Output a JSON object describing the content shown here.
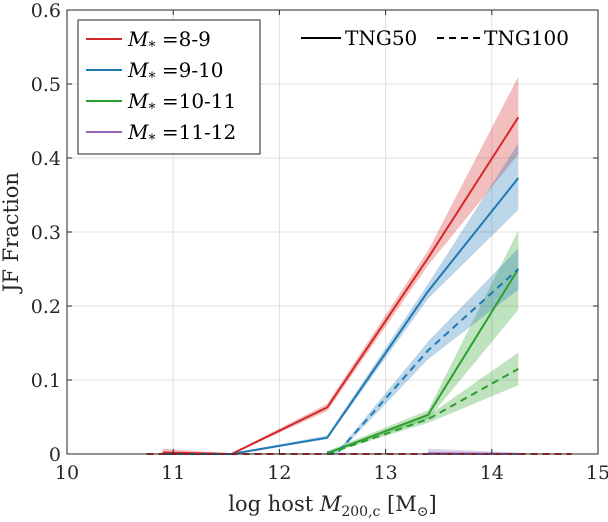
{
  "chart_data": {
    "type": "line",
    "xlabel": "log host M200,c [M⊙]",
    "xlabel_parts": {
      "prefix": "log host ",
      "var": "M",
      "sub": "200,c",
      "unit": " [M",
      "unit_sub": "⊙",
      "suffix": "]"
    },
    "ylabel": "JF Fraction",
    "xlim": [
      10,
      15
    ],
    "ylim": [
      0,
      0.6
    ],
    "xticks": [
      "10",
      "11",
      "12",
      "13",
      "14",
      "15"
    ],
    "yticks": [
      "0",
      "0.1",
      "0.2",
      "0.3",
      "0.4",
      "0.5",
      "0.6"
    ],
    "grid": true,
    "colors": {
      "red": "#d62728",
      "blue": "#1f77b4",
      "green": "#2ca02c",
      "purple": "#9467bd"
    },
    "legend_mass": {
      "placement": "top-left",
      "entries": [
        {
          "var": "M",
          "sub": "*",
          "text": " =8-9",
          "color": "#d62728"
        },
        {
          "var": "M",
          "sub": "*",
          "text": " =9-10",
          "color": "#1f77b4"
        },
        {
          "var": "M",
          "sub": "*",
          "text": " =10-11",
          "color": "#2ca02c"
        },
        {
          "var": "M",
          "sub": "*",
          "text": " =11-12",
          "color": "#9467bd"
        }
      ]
    },
    "legend_sim": {
      "placement": "top-right",
      "entries": [
        {
          "label": "TNG50",
          "style": "solid"
        },
        {
          "label": "TNG100",
          "style": "dashed"
        }
      ]
    },
    "series": [
      {
        "name": "TNG50 M*=8-9",
        "sim": "TNG50",
        "color": "#d62728",
        "style": "solid",
        "x": [
          10.9,
          11.55,
          12.45,
          13.4,
          14.25
        ],
        "y": [
          0.002,
          0.0,
          0.063,
          0.265,
          0.455
        ],
        "lo": [
          0.0,
          0.0,
          0.058,
          0.255,
          0.405
        ],
        "hi": [
          0.007,
          0.001,
          0.068,
          0.275,
          0.51
        ]
      },
      {
        "name": "TNG50 M*=9-10",
        "sim": "TNG50",
        "color": "#1f77b4",
        "style": "solid",
        "x": [
          10.9,
          11.55,
          12.45,
          13.4,
          14.25
        ],
        "y": [
          0.0,
          0.0,
          0.022,
          0.22,
          0.373
        ],
        "lo": [
          0.0,
          0.0,
          0.02,
          0.21,
          0.33
        ],
        "hi": [
          0.003,
          0.001,
          0.025,
          0.23,
          0.42
        ]
      },
      {
        "name": "TNG50 M*=10-11",
        "sim": "TNG50",
        "color": "#2ca02c",
        "style": "solid",
        "x": [
          12.45,
          13.4,
          14.25
        ],
        "y": [
          0.001,
          0.053,
          0.25
        ],
        "lo": [
          0.0,
          0.047,
          0.195
        ],
        "hi": [
          0.004,
          0.059,
          0.302
        ]
      },
      {
        "name": "TNG50 M*=11-12",
        "sim": "TNG50",
        "color": "#9467bd",
        "style": "solid",
        "x": [
          13.4,
          14.25
        ],
        "y": [
          0.001,
          0.0
        ],
        "lo": [
          0.0,
          0.0
        ],
        "hi": [
          0.007,
          0.002
        ]
      },
      {
        "name": "TNG100 M*=8-9",
        "sim": "TNG100",
        "color": "#d62728",
        "style": "dashed",
        "x": [
          10.75,
          11.55,
          12.45,
          13.4,
          14.25,
          14.75
        ],
        "y": [
          0.0,
          0.0,
          0.0,
          0.0,
          0.0,
          0.0
        ],
        "lo": [
          0.0,
          0.0,
          0.0,
          0.0,
          0.0,
          0.0
        ],
        "hi": [
          0.001,
          0.001,
          0.001,
          0.001,
          0.001,
          0.001
        ]
      },
      {
        "name": "TNG100 M*=9-10",
        "sim": "TNG100",
        "color": "#1f77b4",
        "style": "dashed",
        "x": [
          12.45,
          12.55,
          13.4,
          14.25
        ],
        "y": [
          0.002,
          0.002,
          0.14,
          0.25
        ],
        "lo": [
          0.0,
          0.0,
          0.128,
          0.222
        ],
        "hi": [
          0.004,
          0.004,
          0.152,
          0.278
        ]
      },
      {
        "name": "TNG100 M*=10-11",
        "sim": "TNG100",
        "color": "#2ca02c",
        "style": "dashed",
        "x": [
          12.45,
          13.4,
          14.25
        ],
        "y": [
          0.0,
          0.047,
          0.115
        ],
        "lo": [
          0.0,
          0.042,
          0.093
        ],
        "hi": [
          0.003,
          0.052,
          0.137
        ]
      },
      {
        "name": "TNG100 M*=11-12",
        "sim": "TNG100",
        "color": "#9467bd",
        "style": "dashed",
        "x": [
          13.4,
          14.25
        ],
        "y": [
          0.0,
          0.0
        ],
        "lo": [
          0.0,
          0.0
        ],
        "hi": [
          0.002,
          0.001
        ]
      }
    ]
  }
}
